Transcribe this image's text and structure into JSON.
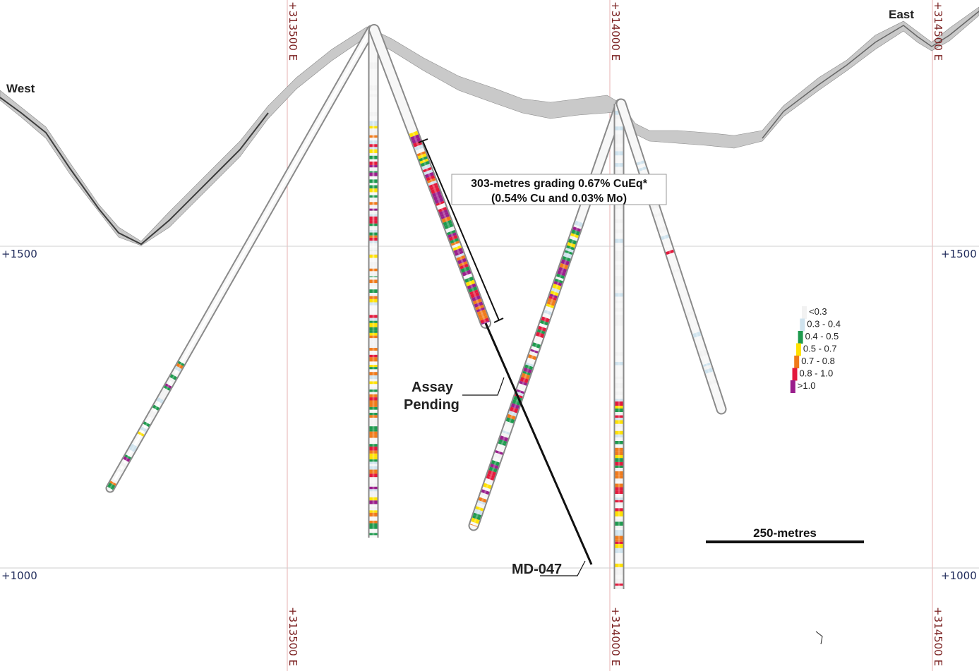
{
  "directions": {
    "west": "West",
    "east": "East"
  },
  "eastings": [
    "+313500 E",
    "+314000 E",
    "+314500 E"
  ],
  "elevations": [
    "+1500",
    "+1000"
  ],
  "intercept": {
    "line1": "303-metres grading 0.67% CuEq*",
    "line2": "(0.54% Cu and 0.03% Mo)"
  },
  "assay_pending": {
    "line1": "Assay",
    "line2": "Pending"
  },
  "hole_label": "MD-047",
  "scale_bar": "250-metres",
  "legend": [
    {
      "label": "<0.3",
      "color": "#f2f2f2"
    },
    {
      "label": "0.3 - 0.4",
      "color": "#cfe3ee"
    },
    {
      "label": "0.4 - 0.5",
      "color": "#1e9a4e"
    },
    {
      "label": "0.5 - 0.7",
      "color": "#ffe100"
    },
    {
      "label": "0.7 - 0.8",
      "color": "#f07a1a"
    },
    {
      "label": "0.8 - 1.0",
      "color": "#e3193c"
    },
    {
      "label": ">1.0",
      "color": "#9a1e8c"
    }
  ]
}
